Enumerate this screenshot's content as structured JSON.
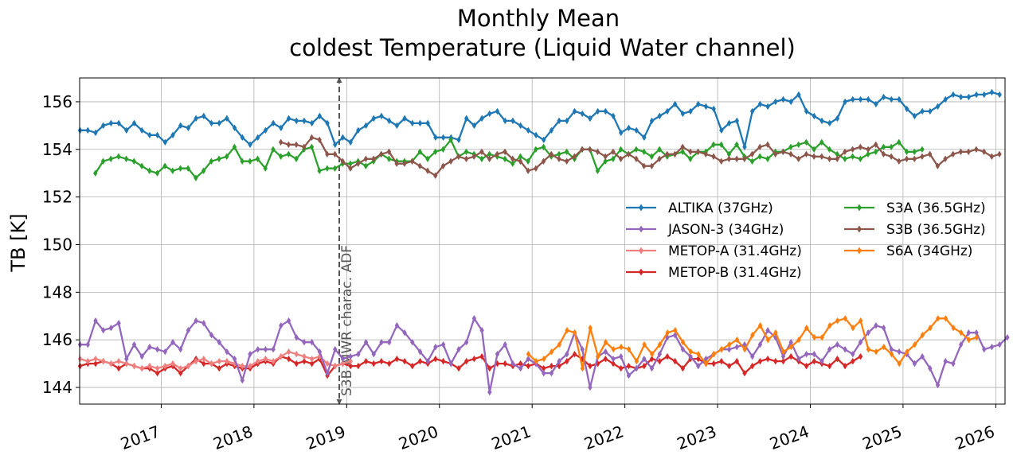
{
  "chart_data": {
    "type": "line",
    "title_line1": "Monthly Mean",
    "title_line2": "coldest Temperature (Liquid Water channel)",
    "ylabel": "TB [K]",
    "xlabel": "",
    "xlim": [
      2016.12,
      2026.1
    ],
    "ylim": [
      143.3,
      157.0
    ],
    "x_ticks": [
      "2017",
      "2018",
      "2019",
      "2020",
      "2021",
      "2022",
      "2023",
      "2024",
      "2025",
      "2026"
    ],
    "y_ticks": [
      "144",
      "146",
      "148",
      "150",
      "152",
      "154",
      "156"
    ],
    "grid": true,
    "legend_position": "center-right",
    "annotation": {
      "label": "S3B MWR charac. ADF",
      "x": 2018.92,
      "color": "#555555"
    },
    "series": [
      {
        "name": "ALTIKA (37GHz)",
        "color": "#1f77b4",
        "x_start": 2016.125,
        "x_step": 0.08333,
        "values": [
          154.8,
          154.8,
          154.7,
          155.0,
          155.1,
          155.1,
          154.8,
          155.1,
          154.8,
          154.6,
          154.6,
          154.3,
          154.6,
          155.0,
          154.9,
          155.3,
          155.4,
          155.1,
          155.1,
          155.3,
          154.9,
          154.5,
          154.2,
          154.5,
          154.8,
          155.1,
          154.9,
          155.3,
          155.2,
          155.2,
          155.1,
          155.4,
          155.1,
          154.2,
          154.5,
          154.3,
          154.8,
          155.0,
          155.3,
          155.4,
          155.2,
          155.0,
          155.3,
          155.1,
          155.1,
          155.1,
          154.5,
          154.5,
          154.5,
          154.4,
          155.3,
          155.0,
          155.3,
          155.5,
          155.6,
          155.2,
          155.2,
          155.0,
          154.8,
          154.6,
          154.4,
          154.8,
          155.2,
          155.2,
          155.6,
          155.5,
          155.3,
          155.6,
          155.6,
          155.4,
          154.7,
          154.9,
          154.8,
          154.5,
          155.2,
          155.4,
          155.6,
          155.9,
          155.5,
          155.6,
          155.9,
          155.8,
          155.7,
          154.8,
          155.1,
          155.2,
          154.1,
          155.6,
          155.9,
          155.8,
          156.0,
          156.1,
          156.0,
          156.3,
          155.6,
          155.4,
          155.2,
          155.1,
          155.3,
          156.0,
          156.1,
          156.1,
          156.1,
          155.9,
          156.2,
          156.1,
          156.1,
          155.7,
          155.4,
          155.6,
          155.6,
          155.8,
          156.1,
          156.3,
          156.2,
          156.2,
          156.3,
          156.3,
          156.4,
          156.3
        ]
      },
      {
        "name": "JASON-3 (34GHz)",
        "color": "#9467bd",
        "x_start": 2016.125,
        "x_step": 0.08333,
        "values": [
          145.8,
          145.8,
          146.8,
          146.4,
          146.5,
          146.7,
          145.2,
          145.8,
          145.3,
          145.7,
          145.6,
          145.5,
          145.9,
          145.6,
          146.4,
          146.8,
          146.7,
          146.2,
          145.9,
          145.5,
          145.2,
          144.3,
          145.4,
          145.6,
          145.6,
          145.6,
          146.6,
          146.8,
          146.1,
          145.9,
          145.9,
          145.5,
          144.6,
          145.6,
          145.2,
          145.3,
          145.4,
          145.9,
          145.4,
          145.9,
          145.9,
          146.6,
          146.3,
          145.9,
          145.5,
          145.1,
          145.7,
          145.8,
          145.0,
          145.6,
          145.9,
          146.9,
          146.4,
          143.8,
          145.4,
          145.8,
          145.0,
          144.8,
          145.2,
          145.0,
          144.6,
          144.6,
          145.1,
          145.4,
          146.3,
          145.6,
          144.0,
          145.3,
          145.5,
          145.2,
          145.3,
          144.5,
          144.8,
          145.2,
          144.8,
          145.4,
          146.1,
          146.2,
          145.6,
          145.3,
          144.9,
          145.2,
          145.4,
          145.6,
          145.6,
          145.7,
          145.8,
          145.3,
          145.8,
          146.4,
          146.1,
          145.3,
          145.9,
          145.2,
          145.4,
          145.4,
          145.1,
          145.6,
          145.8,
          145.6,
          145.4,
          145.9,
          146.3,
          146.6,
          146.5,
          145.6,
          145.5,
          145.4,
          145.0,
          145.3,
          144.8,
          144.1,
          145.1,
          145.0,
          145.8,
          146.3,
          146.3,
          145.6,
          145.7,
          145.8,
          146.1
        ]
      },
      {
        "name": "METOP-A (31.4GHz)",
        "color": "#f08080",
        "x_start": 2016.125,
        "x_step": 0.08333,
        "values": [
          145.2,
          145.1,
          145.2,
          145.1,
          145.0,
          145.1,
          145.0,
          144.9,
          144.8,
          144.9,
          144.8,
          144.9,
          145.0,
          144.8,
          144.9,
          145.1,
          145.2,
          145.0,
          145.1,
          145.1,
          145.0,
          144.9,
          144.9,
          145.1,
          145.2,
          145.1,
          145.3,
          145.5,
          145.4,
          145.3,
          145.2,
          145.3,
          145.0,
          144.9,
          145.0,
          145.1
        ]
      },
      {
        "name": "METOP-B (31.4GHz)",
        "color": "#d62728",
        "x_start": 2016.125,
        "x_step": 0.08333,
        "values": [
          144.9,
          145.0,
          145.0,
          145.1,
          145.0,
          144.8,
          145.0,
          144.9,
          144.8,
          144.8,
          144.6,
          144.8,
          144.9,
          144.6,
          144.9,
          145.2,
          145.0,
          145.0,
          144.8,
          145.0,
          144.9,
          144.8,
          144.8,
          145.0,
          145.1,
          145.0,
          145.3,
          145.2,
          145.0,
          145.1,
          145.0,
          145.2,
          144.5,
          144.9,
          145.0,
          144.9,
          144.9,
          145.1,
          145.0,
          145.1,
          145.0,
          145.2,
          145.1,
          144.9,
          145.1,
          145.0,
          145.2,
          145.1,
          145.0,
          144.8,
          145.1,
          145.2,
          145.3,
          144.8,
          145.0,
          145.0,
          144.9,
          145.0,
          144.9,
          145.0,
          144.8,
          144.9,
          144.9,
          145.1,
          145.4,
          145.2,
          144.9,
          145.0,
          145.2,
          145.0,
          144.8,
          144.9,
          144.8,
          144.9,
          145.2,
          145.1,
          145.3,
          145.1,
          144.8,
          145.2,
          145.2,
          145.0,
          145.0,
          145.1,
          144.9,
          145.1,
          144.6,
          144.9,
          145.1,
          145.2,
          145.1,
          145.1,
          145.3,
          145.1,
          144.9,
          145.1,
          145.0,
          144.9,
          145.2,
          144.9,
          145.1,
          145.3
        ]
      },
      {
        "name": "S3A (36.5GHz)",
        "color": "#2ca02c",
        "x_start": 2016.29,
        "x_step": 0.08333,
        "values": [
          153.0,
          153.5,
          153.6,
          153.7,
          153.6,
          153.5,
          153.3,
          153.1,
          153.0,
          153.3,
          153.1,
          153.2,
          153.2,
          152.8,
          153.1,
          153.5,
          153.6,
          153.7,
          154.1,
          153.5,
          153.5,
          153.6,
          153.2,
          154.0,
          153.7,
          153.8,
          153.6,
          154.0,
          154.1,
          153.1,
          153.2,
          153.2,
          153.4,
          153.4,
          153.5,
          153.3,
          153.5,
          153.8,
          153.6,
          153.5,
          153.5,
          153.5,
          153.9,
          153.6,
          153.9,
          154.0,
          154.4,
          153.7,
          153.9,
          153.8,
          153.6,
          153.8,
          153.7,
          153.6,
          153.4,
          153.7,
          153.5,
          154.0,
          154.1,
          153.7,
          153.8,
          153.9,
          153.6,
          154.0,
          154.0,
          153.1,
          153.5,
          153.6,
          154.0,
          153.8,
          154.0,
          153.9,
          153.7,
          154.0,
          153.7,
          153.8,
          153.9,
          153.6,
          153.9,
          153.9,
          154.2,
          154.2,
          153.8,
          154.2,
          153.7,
          153.5,
          153.7,
          153.6,
          153.9,
          153.9,
          154.1,
          154.2,
          154.3,
          154.0,
          154.3,
          154.0,
          153.8,
          153.6,
          153.7,
          153.6,
          153.8,
          153.9,
          154.1,
          154.1,
          154.3,
          153.9,
          153.9,
          154.0
        ]
      },
      {
        "name": "S3B (36.5GHz)",
        "color": "#8c564b",
        "x_start": 2018.29,
        "x_step": 0.08333,
        "values": [
          154.3,
          154.2,
          154.2,
          154.1,
          154.5,
          154.4,
          153.8,
          153.8,
          153.5,
          153.2,
          153.4,
          153.6,
          153.6,
          153.8,
          153.9,
          153.4,
          153.4,
          153.5,
          153.3,
          153.1,
          152.9,
          153.3,
          153.5,
          153.7,
          153.6,
          153.7,
          153.9,
          153.6,
          153.8,
          153.9,
          153.6,
          153.5,
          153.1,
          153.2,
          153.5,
          153.8,
          153.6,
          153.5,
          153.7,
          154.0,
          154.0,
          153.9,
          153.7,
          153.9,
          153.6,
          153.8,
          153.6,
          153.3,
          153.3,
          153.6,
          153.8,
          153.8,
          154.1,
          153.9,
          153.9,
          153.8,
          153.7,
          153.5,
          153.6,
          153.6,
          153.6,
          153.8,
          154.1,
          154.2,
          153.8,
          153.9,
          153.8,
          153.6,
          153.8,
          153.7,
          153.7,
          153.6,
          153.6,
          153.9,
          154.0,
          154.1,
          154.0,
          154.2,
          153.8,
          153.7,
          153.5,
          153.6,
          153.6,
          153.7,
          153.8,
          153.3,
          153.6,
          153.8,
          153.9,
          153.9,
          154.0,
          153.9,
          153.7,
          153.8
        ]
      },
      {
        "name": "S6A (34GHz)",
        "color": "#ff7f0e",
        "x_start": 2020.96,
        "x_step": 0.08333,
        "values": [
          145.4,
          145.1,
          145.2,
          145.5,
          145.8,
          146.4,
          146.3,
          144.8,
          146.5,
          145.3,
          145.9,
          145.6,
          145.7,
          145.6,
          145.1,
          145.8,
          145.4,
          145.8,
          146.3,
          146.4,
          145.9,
          145.5,
          145.4,
          145.0,
          145.4,
          145.6,
          145.8,
          146.0,
          145.6,
          146.2,
          146.6,
          146.0,
          146.3,
          145.5,
          145.7,
          146.0,
          146.5,
          146.1,
          146.1,
          146.6,
          146.8,
          146.9,
          146.5,
          146.8,
          145.6,
          145.5,
          145.7,
          145.4,
          145.0,
          145.5,
          145.8,
          146.2,
          146.5,
          146.9,
          146.9,
          146.5,
          146.3,
          146.0,
          146.1
        ]
      }
    ]
  }
}
